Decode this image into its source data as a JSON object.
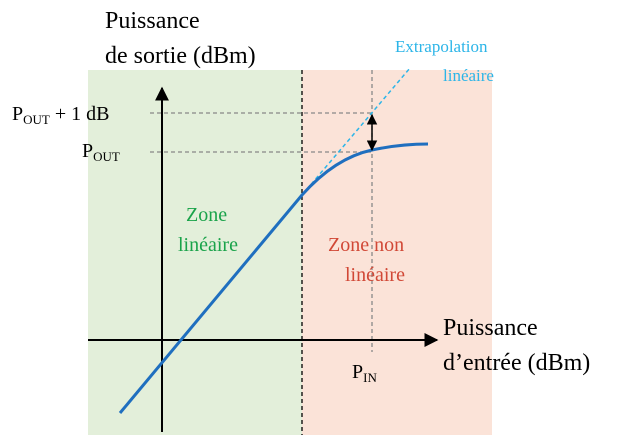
{
  "y_axis_label": [
    "Puissance",
    "de sortie (dBm)"
  ],
  "x_axis_label": [
    "Puissance",
    "d’entrée (dBm)"
  ],
  "extrapolation_label": [
    "Extrapolation",
    "linéaire"
  ],
  "pout_plus_label": {
    "main": "P",
    "sub": "OUT",
    "suffix": " + 1 dB"
  },
  "pout_label": {
    "main": "P",
    "sub": "OUT"
  },
  "pin_label": {
    "main": "P",
    "sub": "IN"
  },
  "linear_zone": [
    "Zone",
    "linéaire"
  ],
  "nonlinear_zone": [
    "Zone non",
    "linéaire"
  ]
}
